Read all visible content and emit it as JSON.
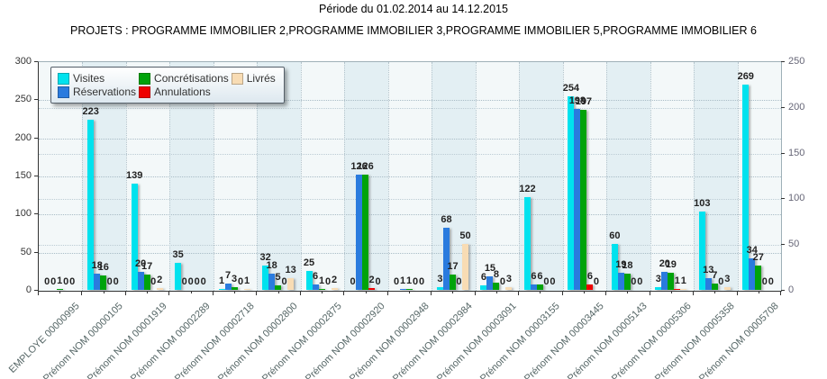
{
  "header": {
    "period_title": "Période du 01.02.2014 au 14.12.2015",
    "projects_title": "PROJETS : PROGRAMME IMMOBILIER 2,PROGRAMME IMMOBILIER 3,PROGRAMME IMMOBILIER 5,PROGRAMME IMMOBILIER 6"
  },
  "chart_data": {
    "type": "bar",
    "title": "Période du 01.02.2014 au 14.12.2015",
    "subtitle": "PROJETS : PROGRAMME IMMOBILIER 2,PROGRAMME IMMOBILIER 3,PROGRAMME IMMOBILIER 5,PROGRAMME IMMOBILIER 6",
    "grid": "dotted",
    "legend_position": "top-left",
    "legend_rows": [
      [
        "Visites",
        "Concrétisations",
        "Livrés"
      ],
      [
        "Réservations",
        "Annulations"
      ]
    ],
    "left_axis": {
      "min": 0,
      "max": 300,
      "step": 50,
      "ticks": [
        0,
        50,
        100,
        150,
        200,
        250,
        300
      ]
    },
    "right_axis": {
      "min": 0,
      "max": 250,
      "step": 50,
      "ticks": [
        0,
        50,
        100,
        150,
        200,
        250
      ]
    },
    "categories": [
      "EMPLOYE 00000995",
      "Prénom NOM 00000105",
      "Prénom NOM 00001919",
      "Prénom NOM 00002289",
      "Prénom NOM 00002718",
      "Prénom NOM 00002800",
      "Prénom NOM 00002875",
      "Prénom NOM 00002920",
      "Prénom NOM 00002948",
      "Prénom NOM 00002984",
      "Prénom NOM 00003091",
      "Prénom NOM 00003155",
      "Prénom NOM 00003445",
      "Prénom NOM 00005143",
      "Prénom NOM 00005306",
      "Prénom NOM 00005358",
      "Prénom NOM 00005708"
    ],
    "series": [
      {
        "name": "Visites",
        "color": "#00E2EE",
        "axis": "left",
        "values": [
          0,
          223,
          139,
          35,
          1,
          32,
          25,
          0,
          0,
          3,
          6,
          122,
          254,
          60,
          3,
          103,
          269
        ]
      },
      {
        "name": "Réservations",
        "color": "#2A7BDE",
        "axis": "right",
        "values": [
          0,
          18,
          20,
          0,
          7,
          18,
          6,
          126,
          1,
          68,
          15,
          6,
          198,
          19,
          20,
          13,
          34
        ]
      },
      {
        "name": "Concrétisations",
        "color": "#00A30B",
        "axis": "right",
        "values": [
          1,
          16,
          17,
          0,
          3,
          5,
          1,
          126,
          1,
          17,
          8,
          6,
          197,
          18,
          19,
          7,
          27
        ]
      },
      {
        "name": "Annulations",
        "color": "#EE0000",
        "axis": "right",
        "values": [
          0,
          0,
          0,
          0,
          0,
          0,
          0,
          2,
          0,
          0,
          0,
          0,
          6,
          0,
          1,
          0,
          0
        ]
      },
      {
        "name": "Livrés",
        "color": "#F8DCB4",
        "axis": "right",
        "values": [
          0,
          0,
          2,
          0,
          1,
          13,
          2,
          0,
          0,
          50,
          3,
          0,
          0,
          0,
          1,
          3,
          0
        ]
      }
    ]
  }
}
